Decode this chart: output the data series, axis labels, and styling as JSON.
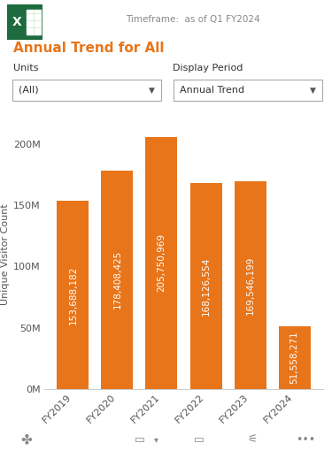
{
  "title": "Annual Trend for All",
  "timeframe_label": "Timeframe:  as of Q1 FY2024",
  "units_label": "Units",
  "units_value": "(All)",
  "display_period_label": "Display Period",
  "display_period_value": "Annual Trend",
  "ylabel": "Unique Visitor Count",
  "categories": [
    "FY2019",
    "FY2020",
    "FY2021",
    "FY2022",
    "FY2023",
    "FY2024"
  ],
  "values": [
    153688182,
    178408425,
    205750969,
    168126554,
    169546199,
    51558271
  ],
  "bar_color": "#E8751A",
  "bar_labels": [
    "153,688,182",
    "178,408,425",
    "205,750,969",
    "168,126,554",
    "169,546,199",
    "51,558,271"
  ],
  "yticks": [
    0,
    50000000,
    100000000,
    150000000,
    200000000
  ],
  "ytick_labels": [
    "0M",
    "50M",
    "100M",
    "150M",
    "200M"
  ],
  "ylim": [
    0,
    220000000
  ],
  "background_color": "#ffffff",
  "chart_bg": "#ffffff",
  "title_color": "#E8751A",
  "label_color": "#ffffff",
  "tick_color": "#555555",
  "timeframe_color": "#888888",
  "bar_label_fontsize": 7.5,
  "title_fontsize": 11,
  "axis_label_fontsize": 8,
  "tick_fontsize": 8,
  "dropdown_border": "#aaaaaa",
  "dropdown_bg": "#ffffff",
  "icon_green": "#1F7145",
  "icon_light_green": "#21A366"
}
